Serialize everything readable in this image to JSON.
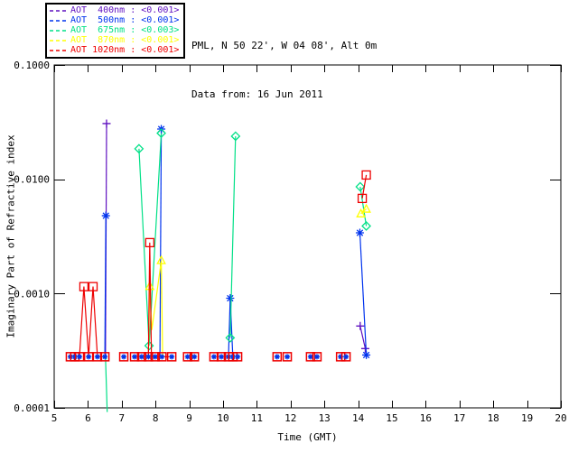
{
  "header": {
    "line1": "PML, N 50 22', W 04 08', Alt 0m",
    "line2": "Data from: 16 Jun 2011"
  },
  "legend": {
    "items": [
      {
        "label": "AOT  400nm : <0.001>",
        "color": "#5f10c0"
      },
      {
        "label": "AOT  500nm : <0.001>",
        "color": "#0033ee"
      },
      {
        "label": "AOT  675nm : <0.003>",
        "color": "#00e087"
      },
      {
        "label": "AOT  870nm : <0.001>",
        "color": "#ffff00"
      },
      {
        "label": "AOT 1020nm : <0.001>",
        "color": "#ee0000"
      }
    ]
  },
  "chart_data": {
    "type": "line",
    "title": "",
    "xlabel": "Time (GMT)",
    "ylabel": "Imaginary Part of Refractive index",
    "x_axis": {
      "min": 5,
      "max": 20,
      "ticks": [
        5,
        6,
        7,
        8,
        9,
        10,
        11,
        12,
        13,
        14,
        15,
        16,
        17,
        18,
        19,
        20
      ]
    },
    "y_axis": {
      "scale": "log",
      "min": 0.0001,
      "max": 0.1,
      "ticks": [
        {
          "value": 0.1,
          "label": "0.1000"
        },
        {
          "value": 0.01,
          "label": "0.0100"
        },
        {
          "value": 0.001,
          "label": "0.0010"
        },
        {
          "value": 0.0001,
          "label": "0.0001"
        }
      ]
    },
    "baseline_value": 0.00028,
    "baseline_times": [
      5.48,
      5.61,
      5.75,
      6.02,
      6.28,
      6.5,
      7.06,
      7.38,
      7.59,
      7.79,
      7.99,
      8.19,
      8.48,
      8.95,
      9.15,
      9.73,
      9.95,
      10.16,
      10.29,
      10.43,
      11.6,
      11.9,
      12.59,
      12.78,
      13.48,
      13.64
    ],
    "series": [
      {
        "name": "AOT 400nm",
        "color": "#5f10c0",
        "marker": "plus",
        "segments": [
          [
            [
              6.52,
              0.00028
            ],
            [
              6.55,
              0.0307
            ]
          ],
          [
            [
              14.06,
              0.00052
            ],
            [
              14.21,
              0.00033
            ]
          ]
        ],
        "points": [
          [
            6.55,
            0.0307
          ],
          [
            14.06,
            0.00052
          ],
          [
            14.21,
            0.00033
          ]
        ]
      },
      {
        "name": "AOT 500nm",
        "color": "#0033ee",
        "marker": "asterisk",
        "segments": [
          [
            [
              6.5,
              0.00028
            ],
            [
              6.53,
              0.0048
            ]
          ],
          [
            [
              8.13,
              0.00028
            ],
            [
              8.17,
              0.0275
            ]
          ],
          [
            [
              10.16,
              0.00028
            ],
            [
              10.21,
              0.00091
            ],
            [
              10.29,
              0.00028
            ]
          ],
          [
            [
              14.05,
              0.0034
            ],
            [
              14.24,
              0.00029
            ]
          ]
        ],
        "points": [
          [
            6.53,
            0.0048
          ],
          [
            8.17,
            0.0275
          ],
          [
            10.21,
            0.00091
          ],
          [
            14.05,
            0.0034
          ],
          [
            14.24,
            0.00029
          ]
        ]
      },
      {
        "name": "AOT 675nm",
        "color": "#00e087",
        "marker": "diamond",
        "segments": [
          [
            [
              6.52,
              0.00028
            ],
            [
              6.57,
              9.2e-05
            ]
          ],
          [
            [
              7.51,
              0.0185
            ],
            [
              7.81,
              0.00035
            ],
            [
              8.17,
              0.0253
            ]
          ],
          [
            [
              10.21,
              0.00041
            ],
            [
              10.37,
              0.0238
            ]
          ],
          [
            [
              14.06,
              0.0086
            ],
            [
              14.24,
              0.0039
            ]
          ]
        ],
        "points": [
          [
            7.51,
            0.0185
          ],
          [
            7.81,
            0.00035
          ],
          [
            8.17,
            0.0253
          ],
          [
            10.21,
            0.00041
          ],
          [
            10.37,
            0.0238
          ],
          [
            14.06,
            0.0086
          ],
          [
            14.24,
            0.0039
          ]
        ]
      },
      {
        "name": "AOT 870nm",
        "color": "#ffff00",
        "marker": "triangle",
        "segments": [
          [
            [
              7.79,
              0.00028
            ],
            [
              7.83,
              0.00116
            ],
            [
              7.89,
              0.00048
            ],
            [
              8.17,
              0.00195
            ],
            [
              8.21,
              0.00028
            ]
          ],
          [
            [
              14.08,
              0.005
            ],
            [
              14.24,
              0.0055
            ]
          ]
        ],
        "points": [
          [
            7.83,
            0.00116
          ],
          [
            8.17,
            0.00195
          ],
          [
            14.08,
            0.005
          ],
          [
            14.24,
            0.0055
          ]
        ]
      },
      {
        "name": "AOT 1020nm",
        "color": "#ee0000",
        "marker": "square",
        "segments": [
          [
            [
              5.48,
              0.00028
            ],
            [
              5.61,
              0.00028
            ],
            [
              5.75,
              0.00028
            ],
            [
              5.88,
              0.00115
            ],
            [
              6.02,
              0.00028
            ],
            [
              6.15,
              0.00115
            ],
            [
              6.28,
              0.00028
            ],
            [
              6.5,
              0.00028
            ]
          ],
          [
            [
              7.38,
              0.00028
            ],
            [
              7.59,
              0.00028
            ],
            [
              7.79,
              0.00028
            ],
            [
              7.83,
              0.00279
            ],
            [
              7.88,
              0.00028
            ],
            [
              7.99,
              0.00028
            ],
            [
              8.19,
              0.00028
            ],
            [
              8.48,
              0.00028
            ]
          ],
          [
            [
              14.12,
              0.0068
            ],
            [
              14.24,
              0.0109
            ]
          ]
        ],
        "points": [
          [
            5.88,
            0.00115
          ],
          [
            6.15,
            0.00115
          ],
          [
            7.83,
            0.00279
          ],
          [
            14.12,
            0.0068
          ],
          [
            14.24,
            0.0109
          ]
        ]
      }
    ]
  }
}
